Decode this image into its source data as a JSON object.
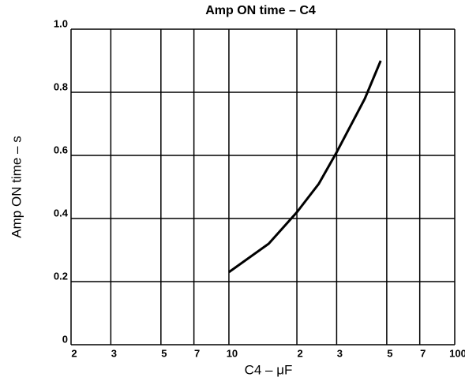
{
  "chart_data": {
    "type": "line",
    "title": "Amp ON time – C4",
    "x_label": "C4 – μF",
    "y_label": "Amp ON time – s",
    "x": [
      10,
      15,
      20,
      25,
      30,
      40,
      47
    ],
    "series": [
      {
        "name": "Amp ON time",
        "color": "#000000",
        "values": [
          0.23,
          0.32,
          0.42,
          0.51,
          0.61,
          0.78,
          0.9
        ]
      }
    ],
    "xlim": [
      2,
      100
    ],
    "x_log": true,
    "xticks": [
      2,
      3,
      5,
      7,
      10,
      {
        "value": 20,
        "label": "2"
      },
      {
        "value": 30,
        "label": "3"
      },
      {
        "value": 50,
        "label": "5"
      },
      {
        "value": 70,
        "label": "7"
      },
      100
    ],
    "ylim": [
      0,
      1
    ],
    "yticks": [
      0,
      0.2,
      0.4,
      0.6,
      0.8,
      {
        "value": 1,
        "label": "1.0"
      }
    ],
    "grid": true
  }
}
